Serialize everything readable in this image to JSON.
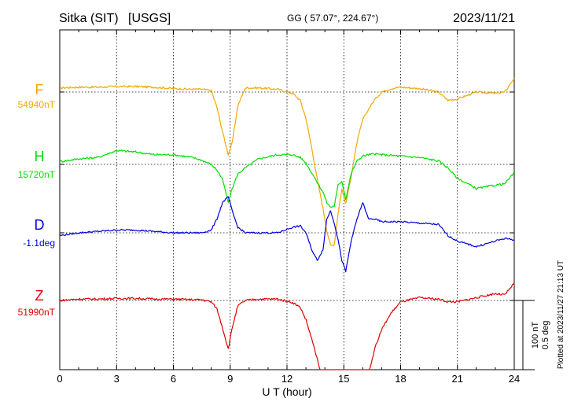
{
  "header": {
    "station": "Sitka (SIT)",
    "source": "[USGS]",
    "coords": "GG ( 57.07°, 224.67°)",
    "date": "2023/11/21"
  },
  "side_note": "Plotted at 2023/11/27 21:13 UT",
  "scale_bar": {
    "line1": "100 nT",
    "line2": "0.5 deg"
  },
  "colors": {
    "F": "#f2a900",
    "H": "#00e000",
    "D": "#0000dd",
    "Z": "#e00000",
    "axis": "#000000"
  },
  "chart_data": {
    "type": "line",
    "xlabel": "U T (hour)",
    "xlim": [
      0,
      24
    ],
    "x_ticks": [
      0,
      3,
      6,
      9,
      12,
      15,
      18,
      21,
      24
    ],
    "x_tick_labels": [
      "0",
      "3",
      "6",
      "9",
      "12",
      "15",
      "18",
      "21",
      "24"
    ],
    "grid": true,
    "scale": {
      "nT_per_bar": 100,
      "deg_per_bar": 0.5
    },
    "series": [
      {
        "name": "F",
        "label": "54940nT",
        "unit": "nT",
        "baseline": 54940,
        "color": "#f2a900",
        "x": [
          0,
          1,
          2,
          3,
          4,
          5,
          6,
          7,
          7.5,
          8,
          8.3,
          8.6,
          8.9,
          9.1,
          9.4,
          9.8,
          10.5,
          11.5,
          12.3,
          12.7,
          13,
          13.3,
          13.6,
          13.9,
          14.1,
          14.3,
          14.5,
          14.7,
          14.9,
          15.1,
          15.4,
          15.7,
          16,
          16.3,
          16.6,
          17,
          17.5,
          18,
          19,
          20,
          20.5,
          21,
          22,
          23,
          23.5,
          24
        ],
        "y": [
          6,
          7,
          7,
          8,
          8,
          7,
          5,
          4,
          4,
          2,
          -22,
          -58,
          -90,
          -74,
          -20,
          6,
          6,
          4,
          -2,
          -12,
          -38,
          -80,
          -126,
          -168,
          -200,
          -222,
          -220,
          -175,
          -140,
          -162,
          -120,
          -72,
          -40,
          -25,
          -12,
          0,
          5,
          7,
          5,
          0,
          -12,
          -10,
          0,
          -2,
          0,
          20
        ]
      },
      {
        "name": "H",
        "label": "15720nT",
        "unit": "nT",
        "baseline": 15720,
        "color": "#00e000",
        "x": [
          0,
          1,
          2,
          3,
          4,
          5,
          6,
          7,
          7.5,
          8,
          8.3,
          8.6,
          8.9,
          9.1,
          9.4,
          9.8,
          10.5,
          11.5,
          12.3,
          12.7,
          13,
          13.3,
          13.6,
          13.9,
          14.1,
          14.3,
          14.5,
          14.7,
          14.9,
          15.1,
          15.4,
          15.7,
          16,
          16.3,
          16.6,
          17,
          17.5,
          18,
          19,
          20,
          20.5,
          21,
          22,
          23,
          23.5,
          24
        ],
        "y": [
          4,
          8,
          10,
          20,
          18,
          14,
          14,
          10,
          6,
          0,
          -8,
          -22,
          -55,
          -35,
          -14,
          -5,
          8,
          14,
          14,
          10,
          2,
          -12,
          -26,
          -40,
          -55,
          -62,
          -60,
          -30,
          -24,
          -50,
          -12,
          5,
          12,
          14,
          15,
          14,
          13,
          12,
          10,
          5,
          -5,
          -20,
          -35,
          -30,
          -28,
          -12
        ]
      },
      {
        "name": "D",
        "label": "-1.1deg",
        "unit": "deg",
        "baseline": -1.1,
        "color": "#0000dd",
        "x": [
          0,
          1,
          2,
          3,
          4,
          5,
          6,
          7,
          7.5,
          8,
          8.3,
          8.6,
          8.9,
          9.1,
          9.4,
          9.8,
          10.5,
          11.5,
          12.3,
          12.7,
          13,
          13.3,
          13.6,
          13.9,
          14.1,
          14.3,
          14.5,
          14.7,
          14.9,
          15.1,
          15.4,
          15.7,
          16,
          16.3,
          16.6,
          17,
          17.5,
          18,
          19,
          20,
          20.5,
          21,
          22,
          23,
          23.5,
          24
        ],
        "y": [
          -0.02,
          0,
          0.01,
          0.02,
          0.02,
          0.01,
          0,
          0,
          0,
          0.02,
          0.1,
          0.22,
          0.26,
          0.16,
          0.04,
          0,
          0,
          0,
          0.04,
          0.05,
          0,
          -0.12,
          -0.2,
          -0.12,
          0.1,
          0.16,
          0.07,
          -0.05,
          -0.2,
          -0.28,
          -0.05,
          0.1,
          0.22,
          0.1,
          0.1,
          0.08,
          0.08,
          0.08,
          0.07,
          0.06,
          -0.02,
          -0.06,
          -0.1,
          -0.06,
          -0.04,
          -0.05
        ]
      },
      {
        "name": "Z",
        "label": "51990nT",
        "unit": "nT",
        "baseline": 51990,
        "color": "#e00000",
        "x": [
          0,
          1,
          2,
          3,
          4,
          5,
          6,
          7,
          7.5,
          8,
          8.3,
          8.6,
          8.9,
          9.1,
          9.4,
          9.8,
          10.5,
          11.5,
          12.3,
          12.7,
          13,
          13.3,
          13.6,
          13.9,
          14.1,
          16.1,
          16.3,
          16.6,
          17,
          17.5,
          18,
          19,
          20,
          20.5,
          21,
          22,
          23,
          23.5,
          24
        ],
        "y": [
          0,
          2,
          2,
          3,
          3,
          2,
          2,
          1,
          1,
          -2,
          -12,
          -40,
          -70,
          -40,
          -8,
          0,
          2,
          2,
          -3,
          -10,
          -28,
          -55,
          -85,
          -120,
          -155,
          -150,
          -110,
          -72,
          -42,
          -18,
          -2,
          4,
          2,
          -2,
          -2,
          4,
          10,
          8,
          25
        ]
      }
    ]
  }
}
